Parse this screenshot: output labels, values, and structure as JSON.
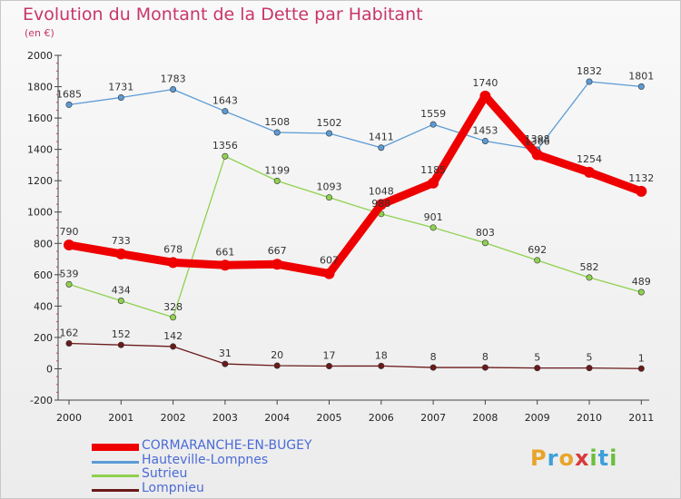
{
  "chart_data": {
    "type": "line",
    "title": "Evolution du Montant de la Dette par Habitant",
    "subtitle": "(en €)",
    "categories": [
      "2000",
      "2001",
      "2002",
      "2003",
      "2004",
      "2005",
      "2006",
      "2007",
      "2008",
      "2009",
      "2010",
      "2011"
    ],
    "ylim": [
      -200,
      2000
    ],
    "yticks": [
      -200,
      0,
      200,
      400,
      600,
      800,
      1000,
      1200,
      1400,
      1600,
      1800,
      2000
    ],
    "grid": false,
    "legend_position": "bottom-left",
    "series": [
      {
        "name": "Hauteville-Lompnes",
        "color": "#5b9bd5",
        "values": [
          1685,
          1731,
          1783,
          1643,
          1508,
          1502,
          1411,
          1559,
          1453,
          1398,
          1832,
          1801
        ],
        "labels": [
          "1685",
          "1731",
          "1783",
          "1643",
          "1508",
          "1502",
          "1411",
          "1559",
          "1453",
          "1398",
          "1832",
          "1801"
        ]
      },
      {
        "name": "Sutrieu",
        "color": "#8fd14f",
        "values": [
          539,
          434,
          328,
          1356,
          1199,
          1093,
          988,
          901,
          803,
          692,
          582,
          489
        ],
        "labels": [
          "539",
          "434",
          "328",
          "1356",
          "1199",
          "1093",
          "988",
          "901",
          "803",
          "692",
          "582",
          "489"
        ]
      },
      {
        "name": "Lompnieu",
        "color": "#6b1a1a",
        "values": [
          162,
          152,
          142,
          31,
          20,
          17,
          18,
          8,
          8,
          5,
          5,
          1
        ],
        "labels": [
          "162",
          "152",
          "142",
          "31",
          "20",
          "17",
          "18",
          "8",
          "8",
          "5",
          "5",
          "1"
        ]
      },
      {
        "name": "CORMARANCHE-EN-BUGEY",
        "color": "#ee0000",
        "values": [
          790,
          733,
          678,
          661,
          667,
          607,
          1048,
          1185,
          1740,
          1366,
          1254,
          1132
        ],
        "labels": [
          "790",
          "733",
          "678",
          "661",
          "667",
          "607",
          "1048",
          "1185",
          "1740",
          "1366",
          "1254",
          "1132"
        ]
      }
    ]
  },
  "legend": [
    {
      "label": "CORMARANCHE-EN-BUGEY",
      "color": "#ee0000",
      "text_color": "#4a6bd6",
      "thick": true
    },
    {
      "label": "Hauteville-Lompnes",
      "color": "#5b9bd5",
      "text_color": "#4a6bd6",
      "thick": false
    },
    {
      "label": "Sutrieu",
      "color": "#8fd14f",
      "text_color": "#4a6bd6",
      "thick": false
    },
    {
      "label": "Lompnieu",
      "color": "#6b1a1a",
      "text_color": "#4a6bd6",
      "thick": false
    }
  ],
  "logo": {
    "text": "Proxiti",
    "letter_colors": [
      "#e8a52a",
      "#3ea0d9",
      "#e8a52a",
      "#d93a3a",
      "#6bbf3a",
      "#3ea0d9",
      "#6bbf3a"
    ]
  }
}
